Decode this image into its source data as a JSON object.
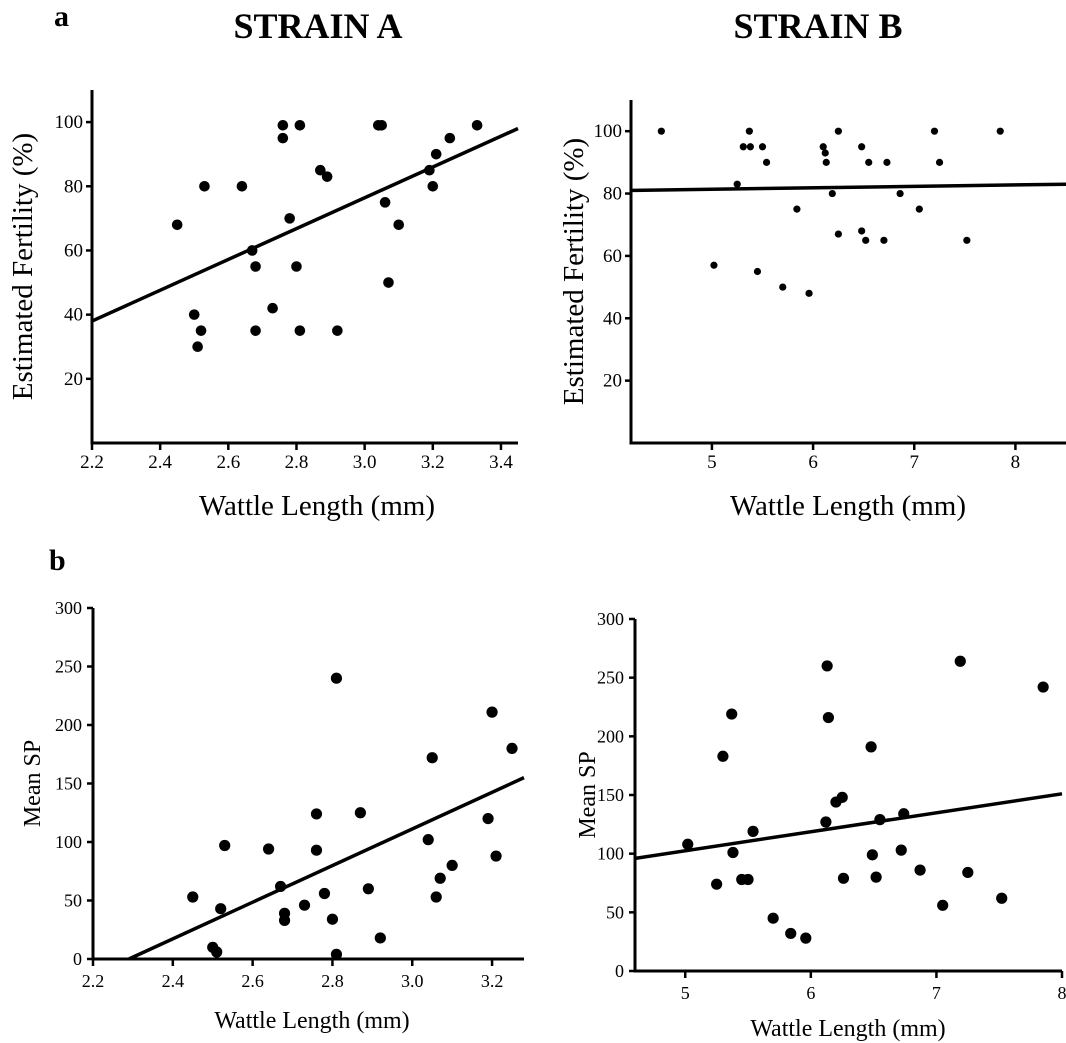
{
  "panel_letters": [
    "a",
    "b"
  ],
  "strain_titles": [
    "STRAIN A",
    "STRAIN B"
  ],
  "chart_data": [
    {
      "panel": "a",
      "type": "scatter",
      "title": "STRAIN A",
      "xlabel": "Wattle Length (mm)",
      "ylabel": "Estimated Fertility (%)",
      "xlim": [
        2.2,
        3.45
      ],
      "ylim": [
        0,
        110
      ],
      "xticks": [
        2.2,
        2.4,
        2.6,
        2.8,
        3.0,
        3.2,
        3.4
      ],
      "xtick_labels": [
        "2.2",
        "2.4",
        "2.6",
        "2.8",
        "3.0",
        "3.2",
        "3.4"
      ],
      "yticks": [
        20,
        40,
        60,
        80,
        100
      ],
      "ytick_labels": [
        "20",
        "40",
        "60",
        "80",
        "100"
      ],
      "grid": false,
      "trendline": {
        "x": [
          2.2,
          3.45
        ],
        "y": [
          38,
          98
        ]
      },
      "points": [
        {
          "x": 2.45,
          "y": 68
        },
        {
          "x": 2.5,
          "y": 40
        },
        {
          "x": 2.51,
          "y": 30
        },
        {
          "x": 2.52,
          "y": 35
        },
        {
          "x": 2.53,
          "y": 80
        },
        {
          "x": 2.64,
          "y": 80
        },
        {
          "x": 2.67,
          "y": 60
        },
        {
          "x": 2.68,
          "y": 55
        },
        {
          "x": 2.68,
          "y": 35
        },
        {
          "x": 2.73,
          "y": 42
        },
        {
          "x": 2.76,
          "y": 99
        },
        {
          "x": 2.76,
          "y": 95
        },
        {
          "x": 2.78,
          "y": 70
        },
        {
          "x": 2.8,
          "y": 55
        },
        {
          "x": 2.81,
          "y": 99
        },
        {
          "x": 2.81,
          "y": 35
        },
        {
          "x": 2.87,
          "y": 85
        },
        {
          "x": 2.89,
          "y": 83
        },
        {
          "x": 2.92,
          "y": 35
        },
        {
          "x": 3.04,
          "y": 99
        },
        {
          "x": 3.05,
          "y": 99
        },
        {
          "x": 3.06,
          "y": 75
        },
        {
          "x": 3.07,
          "y": 50
        },
        {
          "x": 3.1,
          "y": 68
        },
        {
          "x": 3.19,
          "y": 85
        },
        {
          "x": 3.2,
          "y": 80
        },
        {
          "x": 3.21,
          "y": 90
        },
        {
          "x": 3.25,
          "y": 95
        },
        {
          "x": 3.33,
          "y": 99
        }
      ]
    },
    {
      "panel": "a",
      "type": "scatter",
      "title": "STRAIN B",
      "xlabel": "Wattle Length (mm)",
      "ylabel": "Estimated Fertility (%)",
      "xlim": [
        4.2,
        8.5
      ],
      "ylim": [
        0,
        110
      ],
      "xticks": [
        5,
        6,
        7,
        8
      ],
      "xtick_labels": [
        "5",
        "6",
        "7",
        "8"
      ],
      "yticks": [
        20,
        40,
        60,
        80,
        100
      ],
      "ytick_labels": [
        "20",
        "40",
        "60",
        "80",
        "100"
      ],
      "grid": false,
      "trendline": {
        "x": [
          4.2,
          8.5
        ],
        "y": [
          81,
          83
        ]
      },
      "points": [
        {
          "x": 4.5,
          "y": 100
        },
        {
          "x": 5.02,
          "y": 57
        },
        {
          "x": 5.25,
          "y": 83
        },
        {
          "x": 5.31,
          "y": 95
        },
        {
          "x": 5.37,
          "y": 100
        },
        {
          "x": 5.38,
          "y": 95
        },
        {
          "x": 5.45,
          "y": 55
        },
        {
          "x": 5.5,
          "y": 95
        },
        {
          "x": 5.54,
          "y": 90
        },
        {
          "x": 5.7,
          "y": 50
        },
        {
          "x": 5.84,
          "y": 75
        },
        {
          "x": 5.96,
          "y": 48
        },
        {
          "x": 6.1,
          "y": 95
        },
        {
          "x": 6.12,
          "y": 93
        },
        {
          "x": 6.13,
          "y": 90
        },
        {
          "x": 6.19,
          "y": 80
        },
        {
          "x": 6.25,
          "y": 67
        },
        {
          "x": 6.25,
          "y": 100
        },
        {
          "x": 6.48,
          "y": 68
        },
        {
          "x": 6.48,
          "y": 95
        },
        {
          "x": 6.52,
          "y": 65
        },
        {
          "x": 6.55,
          "y": 90
        },
        {
          "x": 6.7,
          "y": 65
        },
        {
          "x": 6.73,
          "y": 90
        },
        {
          "x": 6.86,
          "y": 80
        },
        {
          "x": 7.05,
          "y": 75
        },
        {
          "x": 7.2,
          "y": 100
        },
        {
          "x": 7.25,
          "y": 90
        },
        {
          "x": 7.52,
          "y": 65
        },
        {
          "x": 7.85,
          "y": 100
        }
      ]
    },
    {
      "panel": "b",
      "type": "scatter",
      "title": "STRAIN A",
      "xlabel": "Wattle Length (mm)",
      "ylabel": "Mean SP",
      "xlim": [
        2.2,
        3.28
      ],
      "ylim": [
        0,
        300
      ],
      "xticks": [
        2.2,
        2.4,
        2.6,
        2.8,
        3.0,
        3.2
      ],
      "xtick_labels": [
        "2.2",
        "2.4",
        "2.6",
        "2.8",
        "3.0",
        "3.2"
      ],
      "yticks": [
        0,
        50,
        100,
        150,
        200,
        250,
        300
      ],
      "ytick_labels": [
        "0",
        "50",
        "100",
        "150",
        "200",
        "250",
        "300"
      ],
      "grid": false,
      "trendline": {
        "x": [
          2.29,
          3.28
        ],
        "y": [
          0,
          155
        ]
      },
      "points": [
        {
          "x": 2.45,
          "y": 53
        },
        {
          "x": 2.5,
          "y": 10
        },
        {
          "x": 2.51,
          "y": 6
        },
        {
          "x": 2.52,
          "y": 43
        },
        {
          "x": 2.53,
          "y": 97
        },
        {
          "x": 2.64,
          "y": 94
        },
        {
          "x": 2.67,
          "y": 62
        },
        {
          "x": 2.68,
          "y": 39
        },
        {
          "x": 2.68,
          "y": 33
        },
        {
          "x": 2.73,
          "y": 46
        },
        {
          "x": 2.76,
          "y": 124
        },
        {
          "x": 2.76,
          "y": 93
        },
        {
          "x": 2.78,
          "y": 56
        },
        {
          "x": 2.8,
          "y": 34
        },
        {
          "x": 2.81,
          "y": 240
        },
        {
          "x": 2.81,
          "y": 4
        },
        {
          "x": 2.87,
          "y": 125
        },
        {
          "x": 2.89,
          "y": 60
        },
        {
          "x": 2.92,
          "y": 18
        },
        {
          "x": 3.04,
          "y": 102
        },
        {
          "x": 3.05,
          "y": 172
        },
        {
          "x": 3.06,
          "y": 53
        },
        {
          "x": 3.07,
          "y": 69
        },
        {
          "x": 3.1,
          "y": 80
        },
        {
          "x": 3.19,
          "y": 120
        },
        {
          "x": 3.2,
          "y": 211
        },
        {
          "x": 3.21,
          "y": 88
        },
        {
          "x": 3.25,
          "y": 180
        }
      ]
    },
    {
      "panel": "b",
      "type": "scatter",
      "title": "STRAIN B",
      "xlabel": "Wattle Length (mm)",
      "ylabel": "Mean SP",
      "xlim": [
        4.6,
        8.0
      ],
      "ylim": [
        0,
        300
      ],
      "xticks": [
        5,
        6,
        7,
        8
      ],
      "xtick_labels": [
        "5",
        "6",
        "7",
        "8"
      ],
      "yticks": [
        0,
        50,
        100,
        150,
        200,
        250,
        300
      ],
      "ytick_labels": [
        "0",
        "50",
        "100",
        "150",
        "200",
        "250",
        "300"
      ],
      "grid": false,
      "trendline": {
        "x": [
          4.6,
          8.0
        ],
        "y": [
          96,
          151
        ]
      },
      "points": [
        {
          "x": 5.02,
          "y": 108
        },
        {
          "x": 5.25,
          "y": 74
        },
        {
          "x": 5.3,
          "y": 183
        },
        {
          "x": 5.37,
          "y": 219
        },
        {
          "x": 5.38,
          "y": 101
        },
        {
          "x": 5.45,
          "y": 78
        },
        {
          "x": 5.5,
          "y": 78
        },
        {
          "x": 5.54,
          "y": 119
        },
        {
          "x": 5.7,
          "y": 45
        },
        {
          "x": 5.84,
          "y": 32
        },
        {
          "x": 5.96,
          "y": 28
        },
        {
          "x": 6.12,
          "y": 127
        },
        {
          "x": 6.13,
          "y": 260
        },
        {
          "x": 6.14,
          "y": 216
        },
        {
          "x": 6.2,
          "y": 144
        },
        {
          "x": 6.25,
          "y": 148
        },
        {
          "x": 6.26,
          "y": 79
        },
        {
          "x": 6.48,
          "y": 191
        },
        {
          "x": 6.49,
          "y": 99
        },
        {
          "x": 6.52,
          "y": 80
        },
        {
          "x": 6.55,
          "y": 129
        },
        {
          "x": 6.72,
          "y": 103
        },
        {
          "x": 6.74,
          "y": 134
        },
        {
          "x": 6.87,
          "y": 86
        },
        {
          "x": 7.05,
          "y": 56
        },
        {
          "x": 7.19,
          "y": 264
        },
        {
          "x": 7.25,
          "y": 84
        },
        {
          "x": 7.52,
          "y": 62
        },
        {
          "x": 7.85,
          "y": 242
        }
      ]
    }
  ]
}
